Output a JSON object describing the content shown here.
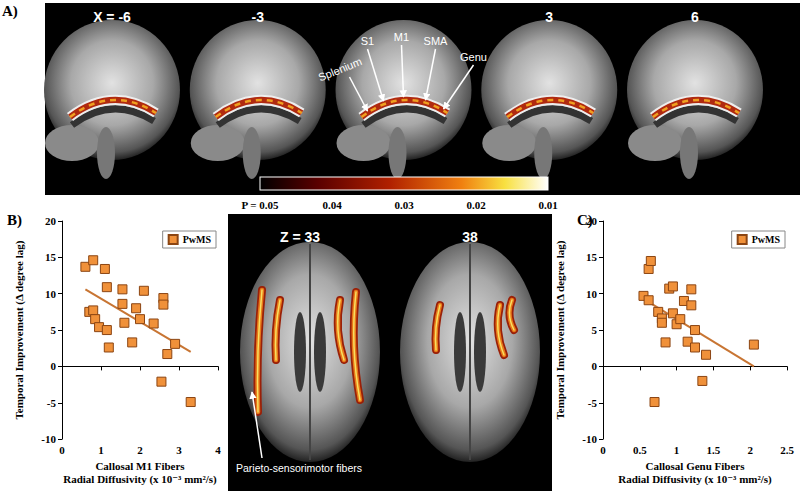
{
  "chart_data": [
    {
      "type": "scatter",
      "title": "B)",
      "x_label": "Callosal M1 Fibers\nRadial Diffusivity (x 10⁻³ mm²/s)",
      "y_label": "Temporal Improvement (Δ degree lag)",
      "xlim": [
        0,
        4
      ],
      "xticks": [
        0,
        1,
        2,
        3,
        4
      ],
      "ylim": [
        -10,
        20
      ],
      "yticks": [
        -10,
        -5,
        0,
        5,
        10,
        15,
        20
      ],
      "grid": false,
      "legend": "upper right",
      "series": [
        {
          "name": "PwMS",
          "type": "scatter",
          "marker": "square",
          "color": "#f0913a",
          "x": [
            0.6,
            0.8,
            0.7,
            0.8,
            0.85,
            0.95,
            1.1,
            1.15,
            1.15,
            1.2,
            1.55,
            1.55,
            1.6,
            1.8,
            1.9,
            2.0,
            2.1,
            2.35,
            2.6,
            2.6,
            2.55,
            2.7,
            2.9,
            3.3
          ],
          "values": [
            13.7,
            14.6,
            7.5,
            7.7,
            6.5,
            5.4,
            13.4,
            10.9,
            5.0,
            2.6,
            10.6,
            8.6,
            6.0,
            3.3,
            8.0,
            6.5,
            10.4,
            5.9,
            9.4,
            8.5,
            -2.1,
            1.7,
            3.1,
            -4.9
          ]
        },
        {
          "type": "line",
          "line_style": "solid",
          "color": "#c87533",
          "x": [
            0.6,
            3.3
          ],
          "values": [
            10.6,
            2.0
          ]
        }
      ]
    },
    {
      "type": "scatter",
      "title": "C)",
      "x_label": "Callosal Genu Fibers\nRadial Diffusivity (x 10⁻³ mm²/s)",
      "y_label": "Temporal Improvement (Δ degree lag)",
      "xlim": [
        0,
        2.5
      ],
      "xticks": [
        0,
        0.5,
        1,
        1.5,
        2,
        2.5
      ],
      "ylim": [
        -10,
        20
      ],
      "yticks": [
        -10,
        -5,
        0,
        5,
        10,
        15,
        20
      ],
      "grid": false,
      "legend": "upper right",
      "series": [
        {
          "name": "PwMS",
          "type": "scatter",
          "marker": "square",
          "color": "#f0913a",
          "x": [
            0.55,
            0.62,
            0.65,
            0.62,
            0.7,
            0.75,
            0.8,
            0.8,
            0.85,
            0.9,
            0.95,
            0.95,
            1.0,
            1.05,
            1.1,
            1.15,
            1.2,
            1.2,
            1.25,
            1.25,
            1.35,
            1.4,
            2.05
          ],
          "values": [
            9.7,
            13.4,
            14.5,
            9.1,
            -4.9,
            7.5,
            6.6,
            6.0,
            3.3,
            10.7,
            11.0,
            7.3,
            5.8,
            6.5,
            9.0,
            3.4,
            10.6,
            8.4,
            5.0,
            2.6,
            -2.0,
            1.6,
            3.0
          ]
        },
        {
          "type": "line",
          "line_style": "solid",
          "color": "#c87533",
          "x": [
            0.5,
            2.05
          ],
          "values": [
            9.6,
            0.0
          ]
        }
      ]
    }
  ],
  "brain_panels": {
    "sagittal": {
      "label": "A)",
      "slices": [
        {
          "value": -6,
          "label": "X = -6"
        },
        -3,
        null,
        3,
        6
      ],
      "structures": [
        "Splenium",
        "S1",
        "M1",
        "SMA",
        "Genu"
      ],
      "colorbar": {
        "range": [
          0.05,
          0.01
        ],
        "ticks": [
          {
            "value": 0.05,
            "label": "P = 0.05"
          },
          0.04,
          0.03,
          0.02,
          0.01
        ]
      }
    },
    "axial": {
      "slices": [
        {
          "value": 33,
          "label": "Z = 33"
        },
        38
      ],
      "annotation": "Parieto-sensorimotor fibers"
    }
  }
}
